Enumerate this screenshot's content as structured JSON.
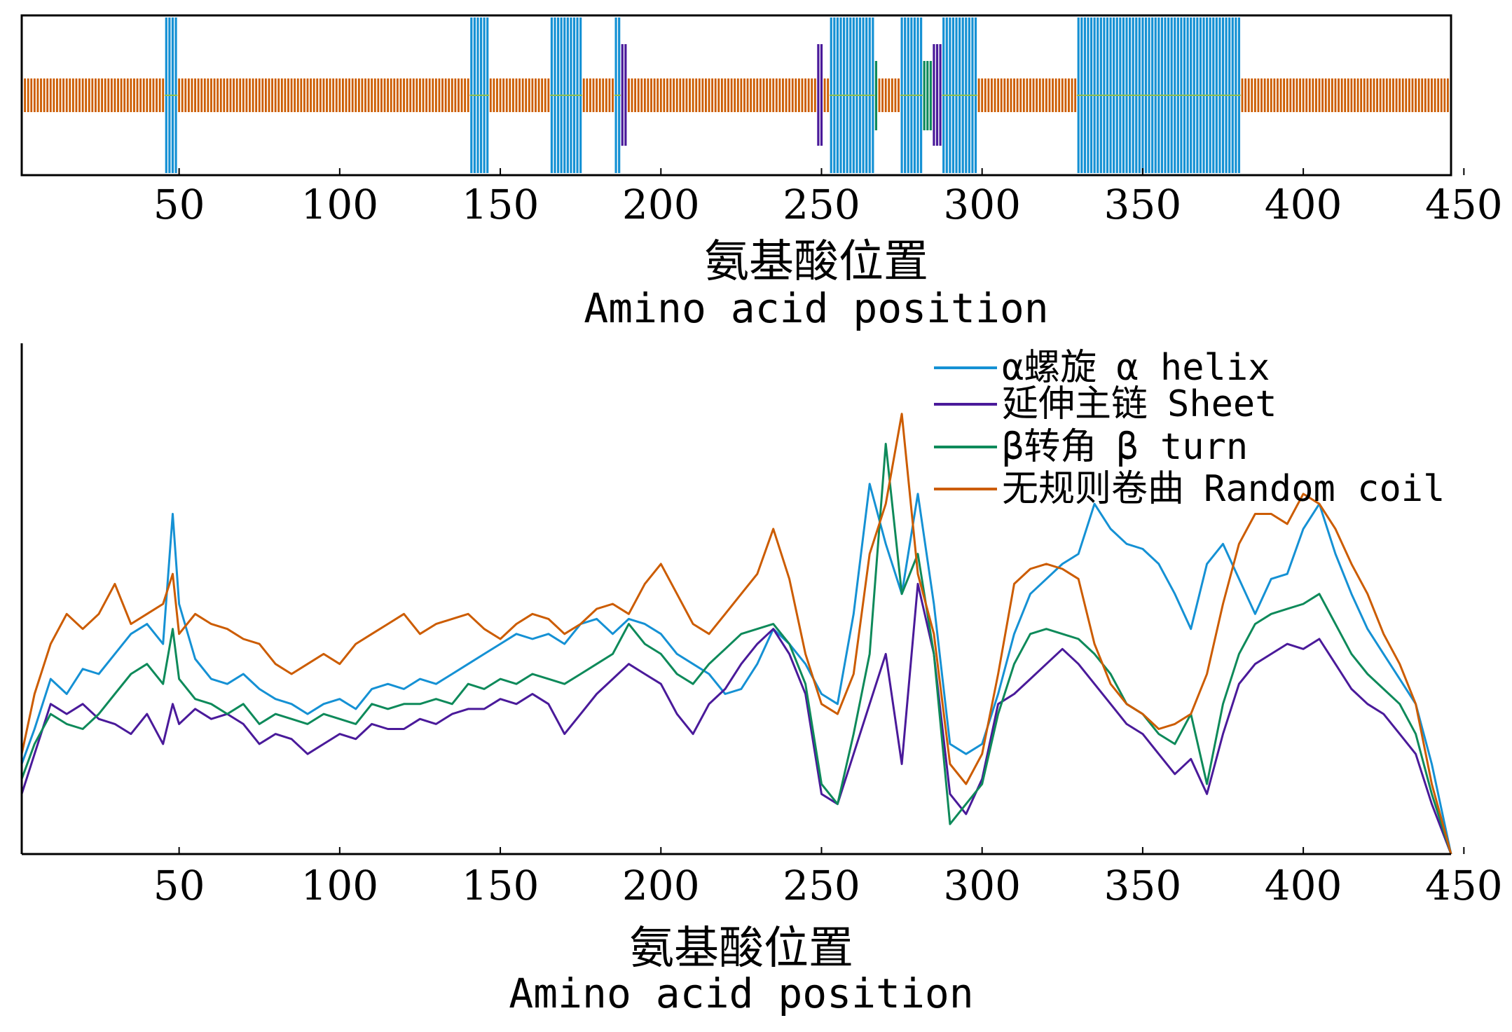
{
  "chart_data": [
    {
      "type": "bar",
      "xlabel_cn": "氨基酸位置",
      "xlabel_en": "Amino acid position",
      "xlim": [
        1,
        446
      ],
      "xticks": [
        50,
        100,
        150,
        200,
        250,
        300,
        350,
        400,
        450
      ],
      "colors": {
        "helix": "#1591d4",
        "sheet": "#4a1a9a",
        "turn": "#0e8a5a",
        "coil": "#cc5c00"
      },
      "segments": [
        {
          "type": "coil",
          "start": 1,
          "end": 45
        },
        {
          "type": "helix",
          "start": 46,
          "end": 49
        },
        {
          "type": "coil",
          "start": 50,
          "end": 140
        },
        {
          "type": "helix",
          "start": 141,
          "end": 146
        },
        {
          "type": "coil",
          "start": 147,
          "end": 165
        },
        {
          "type": "helix",
          "start": 166,
          "end": 175
        },
        {
          "type": "coil",
          "start": 176,
          "end": 185
        },
        {
          "type": "helix",
          "start": 186,
          "end": 187
        },
        {
          "type": "sheet",
          "start": 188,
          "end": 189
        },
        {
          "type": "coil",
          "start": 190,
          "end": 248
        },
        {
          "type": "sheet",
          "start": 249,
          "end": 250
        },
        {
          "type": "coil",
          "start": 251,
          "end": 252
        },
        {
          "type": "helix",
          "start": 253,
          "end": 266
        },
        {
          "type": "turn",
          "start": 267,
          "end": 267
        },
        {
          "type": "coil",
          "start": 268,
          "end": 274
        },
        {
          "type": "helix",
          "start": 275,
          "end": 281
        },
        {
          "type": "turn",
          "start": 282,
          "end": 284
        },
        {
          "type": "sheet",
          "start": 285,
          "end": 287
        },
        {
          "type": "helix",
          "start": 288,
          "end": 298
        },
        {
          "type": "coil",
          "start": 299,
          "end": 329
        },
        {
          "type": "helix",
          "start": 330,
          "end": 380
        },
        {
          "type": "coil",
          "start": 381,
          "end": 446
        }
      ]
    },
    {
      "type": "line",
      "xlabel_cn": "氨基酸位置",
      "xlabel_en": "Amino acid position",
      "xlim": [
        1,
        446
      ],
      "ylim": [
        0,
        1
      ],
      "xticks": [
        50,
        100,
        150,
        200,
        250,
        300,
        350,
        400,
        450
      ],
      "legend_position": "top-right",
      "series": [
        {
          "key": "helix",
          "name_cn": "α螺旋",
          "name_en": "α helix",
          "color": "#1591d4",
          "x": [
            1,
            5,
            10,
            15,
            20,
            25,
            30,
            35,
            40,
            45,
            48,
            50,
            55,
            60,
            65,
            70,
            75,
            80,
            85,
            90,
            95,
            100,
            105,
            110,
            115,
            120,
            125,
            130,
            135,
            140,
            145,
            150,
            155,
            160,
            165,
            170,
            175,
            180,
            185,
            190,
            195,
            200,
            205,
            210,
            215,
            220,
            225,
            230,
            235,
            240,
            245,
            250,
            255,
            260,
            265,
            270,
            275,
            280,
            285,
            290,
            295,
            300,
            305,
            310,
            315,
            320,
            325,
            330,
            335,
            340,
            345,
            350,
            355,
            360,
            365,
            370,
            375,
            380,
            385,
            390,
            395,
            400,
            405,
            410,
            415,
            420,
            425,
            430,
            435,
            440,
            446
          ],
          "y": [
            0.18,
            0.25,
            0.35,
            0.32,
            0.37,
            0.36,
            0.4,
            0.44,
            0.46,
            0.42,
            0.68,
            0.5,
            0.39,
            0.35,
            0.34,
            0.36,
            0.33,
            0.31,
            0.3,
            0.28,
            0.3,
            0.31,
            0.29,
            0.33,
            0.34,
            0.33,
            0.35,
            0.34,
            0.36,
            0.38,
            0.4,
            0.42,
            0.44,
            0.43,
            0.44,
            0.42,
            0.46,
            0.47,
            0.44,
            0.47,
            0.46,
            0.44,
            0.4,
            0.38,
            0.36,
            0.32,
            0.33,
            0.38,
            0.45,
            0.42,
            0.38,
            0.32,
            0.3,
            0.48,
            0.74,
            0.62,
            0.52,
            0.72,
            0.5,
            0.22,
            0.2,
            0.22,
            0.32,
            0.44,
            0.52,
            0.55,
            0.58,
            0.6,
            0.7,
            0.65,
            0.62,
            0.61,
            0.58,
            0.52,
            0.45,
            0.58,
            0.62,
            0.55,
            0.48,
            0.55,
            0.56,
            0.65,
            0.7,
            0.6,
            0.52,
            0.45,
            0.4,
            0.35,
            0.3,
            0.18,
            0.0
          ]
        },
        {
          "key": "sheet",
          "name_cn": "延伸主链",
          "name_en": "Sheet",
          "color": "#4a1a9a",
          "x": [
            1,
            5,
            10,
            15,
            20,
            25,
            30,
            35,
            40,
            45,
            48,
            50,
            55,
            60,
            65,
            70,
            75,
            80,
            85,
            90,
            95,
            100,
            105,
            110,
            115,
            120,
            125,
            130,
            135,
            140,
            145,
            150,
            155,
            160,
            165,
            170,
            175,
            180,
            185,
            190,
            195,
            200,
            205,
            210,
            215,
            220,
            225,
            230,
            235,
            240,
            245,
            250,
            255,
            260,
            265,
            270,
            275,
            280,
            285,
            290,
            295,
            300,
            305,
            310,
            315,
            320,
            325,
            330,
            335,
            340,
            345,
            350,
            355,
            360,
            365,
            370,
            375,
            380,
            385,
            390,
            395,
            400,
            405,
            410,
            415,
            420,
            425,
            430,
            435,
            440,
            446
          ],
          "y": [
            0.12,
            0.2,
            0.3,
            0.28,
            0.3,
            0.27,
            0.26,
            0.24,
            0.28,
            0.22,
            0.3,
            0.26,
            0.29,
            0.27,
            0.28,
            0.26,
            0.22,
            0.24,
            0.23,
            0.2,
            0.22,
            0.24,
            0.23,
            0.26,
            0.25,
            0.25,
            0.27,
            0.26,
            0.28,
            0.29,
            0.29,
            0.31,
            0.3,
            0.32,
            0.3,
            0.24,
            0.28,
            0.32,
            0.35,
            0.38,
            0.36,
            0.34,
            0.28,
            0.24,
            0.3,
            0.33,
            0.38,
            0.42,
            0.45,
            0.4,
            0.32,
            0.12,
            0.1,
            0.2,
            0.3,
            0.4,
            0.18,
            0.54,
            0.4,
            0.12,
            0.08,
            0.15,
            0.3,
            0.32,
            0.35,
            0.38,
            0.41,
            0.38,
            0.34,
            0.3,
            0.26,
            0.24,
            0.2,
            0.16,
            0.19,
            0.12,
            0.24,
            0.34,
            0.38,
            0.4,
            0.42,
            0.41,
            0.43,
            0.38,
            0.33,
            0.3,
            0.28,
            0.24,
            0.2,
            0.1,
            0.0
          ]
        },
        {
          "key": "turn",
          "name_cn": "β转角",
          "name_en": "β turn",
          "color": "#0e8a5a",
          "x": [
            1,
            5,
            10,
            15,
            20,
            25,
            30,
            35,
            40,
            45,
            48,
            50,
            55,
            60,
            65,
            70,
            75,
            80,
            85,
            90,
            95,
            100,
            105,
            110,
            115,
            120,
            125,
            130,
            135,
            140,
            145,
            150,
            155,
            160,
            165,
            170,
            175,
            180,
            185,
            190,
            195,
            200,
            205,
            210,
            215,
            220,
            225,
            230,
            235,
            240,
            245,
            250,
            255,
            260,
            265,
            270,
            275,
            280,
            285,
            290,
            295,
            300,
            305,
            310,
            315,
            320,
            325,
            330,
            335,
            340,
            345,
            350,
            355,
            360,
            365,
            370,
            375,
            380,
            385,
            390,
            395,
            400,
            405,
            410,
            415,
            420,
            425,
            430,
            435,
            440,
            446
          ],
          "y": [
            0.15,
            0.22,
            0.28,
            0.26,
            0.25,
            0.28,
            0.32,
            0.36,
            0.38,
            0.34,
            0.45,
            0.35,
            0.31,
            0.3,
            0.28,
            0.3,
            0.26,
            0.28,
            0.27,
            0.26,
            0.28,
            0.27,
            0.26,
            0.3,
            0.29,
            0.3,
            0.3,
            0.31,
            0.3,
            0.34,
            0.33,
            0.35,
            0.34,
            0.36,
            0.35,
            0.34,
            0.36,
            0.38,
            0.4,
            0.46,
            0.42,
            0.4,
            0.36,
            0.34,
            0.38,
            0.41,
            0.44,
            0.45,
            0.46,
            0.42,
            0.34,
            0.14,
            0.1,
            0.24,
            0.4,
            0.82,
            0.52,
            0.6,
            0.4,
            0.06,
            0.1,
            0.14,
            0.28,
            0.38,
            0.44,
            0.45,
            0.44,
            0.43,
            0.4,
            0.36,
            0.3,
            0.28,
            0.24,
            0.22,
            0.28,
            0.14,
            0.3,
            0.4,
            0.46,
            0.48,
            0.49,
            0.5,
            0.52,
            0.46,
            0.4,
            0.36,
            0.33,
            0.3,
            0.24,
            0.12,
            0.0
          ]
        },
        {
          "key": "coil",
          "name_cn": "无规则卷曲",
          "name_en": "Random coil",
          "color": "#cc5c00",
          "x": [
            1,
            5,
            10,
            15,
            20,
            25,
            30,
            35,
            40,
            45,
            48,
            50,
            55,
            60,
            65,
            70,
            75,
            80,
            85,
            90,
            95,
            100,
            105,
            110,
            115,
            120,
            125,
            130,
            135,
            140,
            145,
            150,
            155,
            160,
            165,
            170,
            175,
            180,
            185,
            190,
            195,
            200,
            205,
            210,
            215,
            220,
            225,
            230,
            235,
            240,
            245,
            250,
            255,
            260,
            265,
            270,
            275,
            280,
            285,
            290,
            295,
            300,
            305,
            310,
            315,
            320,
            325,
            330,
            335,
            340,
            345,
            350,
            355,
            360,
            365,
            370,
            375,
            380,
            385,
            390,
            395,
            400,
            405,
            410,
            415,
            420,
            425,
            430,
            435,
            440,
            446
          ],
          "y": [
            0.2,
            0.32,
            0.42,
            0.48,
            0.45,
            0.48,
            0.54,
            0.46,
            0.48,
            0.5,
            0.56,
            0.44,
            0.48,
            0.46,
            0.45,
            0.43,
            0.42,
            0.38,
            0.36,
            0.38,
            0.4,
            0.38,
            0.42,
            0.44,
            0.46,
            0.48,
            0.44,
            0.46,
            0.47,
            0.48,
            0.45,
            0.43,
            0.46,
            0.48,
            0.47,
            0.44,
            0.46,
            0.49,
            0.5,
            0.48,
            0.54,
            0.58,
            0.52,
            0.46,
            0.44,
            0.48,
            0.52,
            0.56,
            0.65,
            0.55,
            0.4,
            0.3,
            0.28,
            0.36,
            0.6,
            0.7,
            0.88,
            0.56,
            0.44,
            0.18,
            0.14,
            0.2,
            0.36,
            0.54,
            0.57,
            0.58,
            0.57,
            0.55,
            0.42,
            0.34,
            0.3,
            0.28,
            0.25,
            0.26,
            0.28,
            0.36,
            0.5,
            0.62,
            0.68,
            0.68,
            0.66,
            0.72,
            0.7,
            0.65,
            0.58,
            0.52,
            0.44,
            0.38,
            0.3,
            0.14,
            0.0
          ]
        }
      ]
    }
  ]
}
